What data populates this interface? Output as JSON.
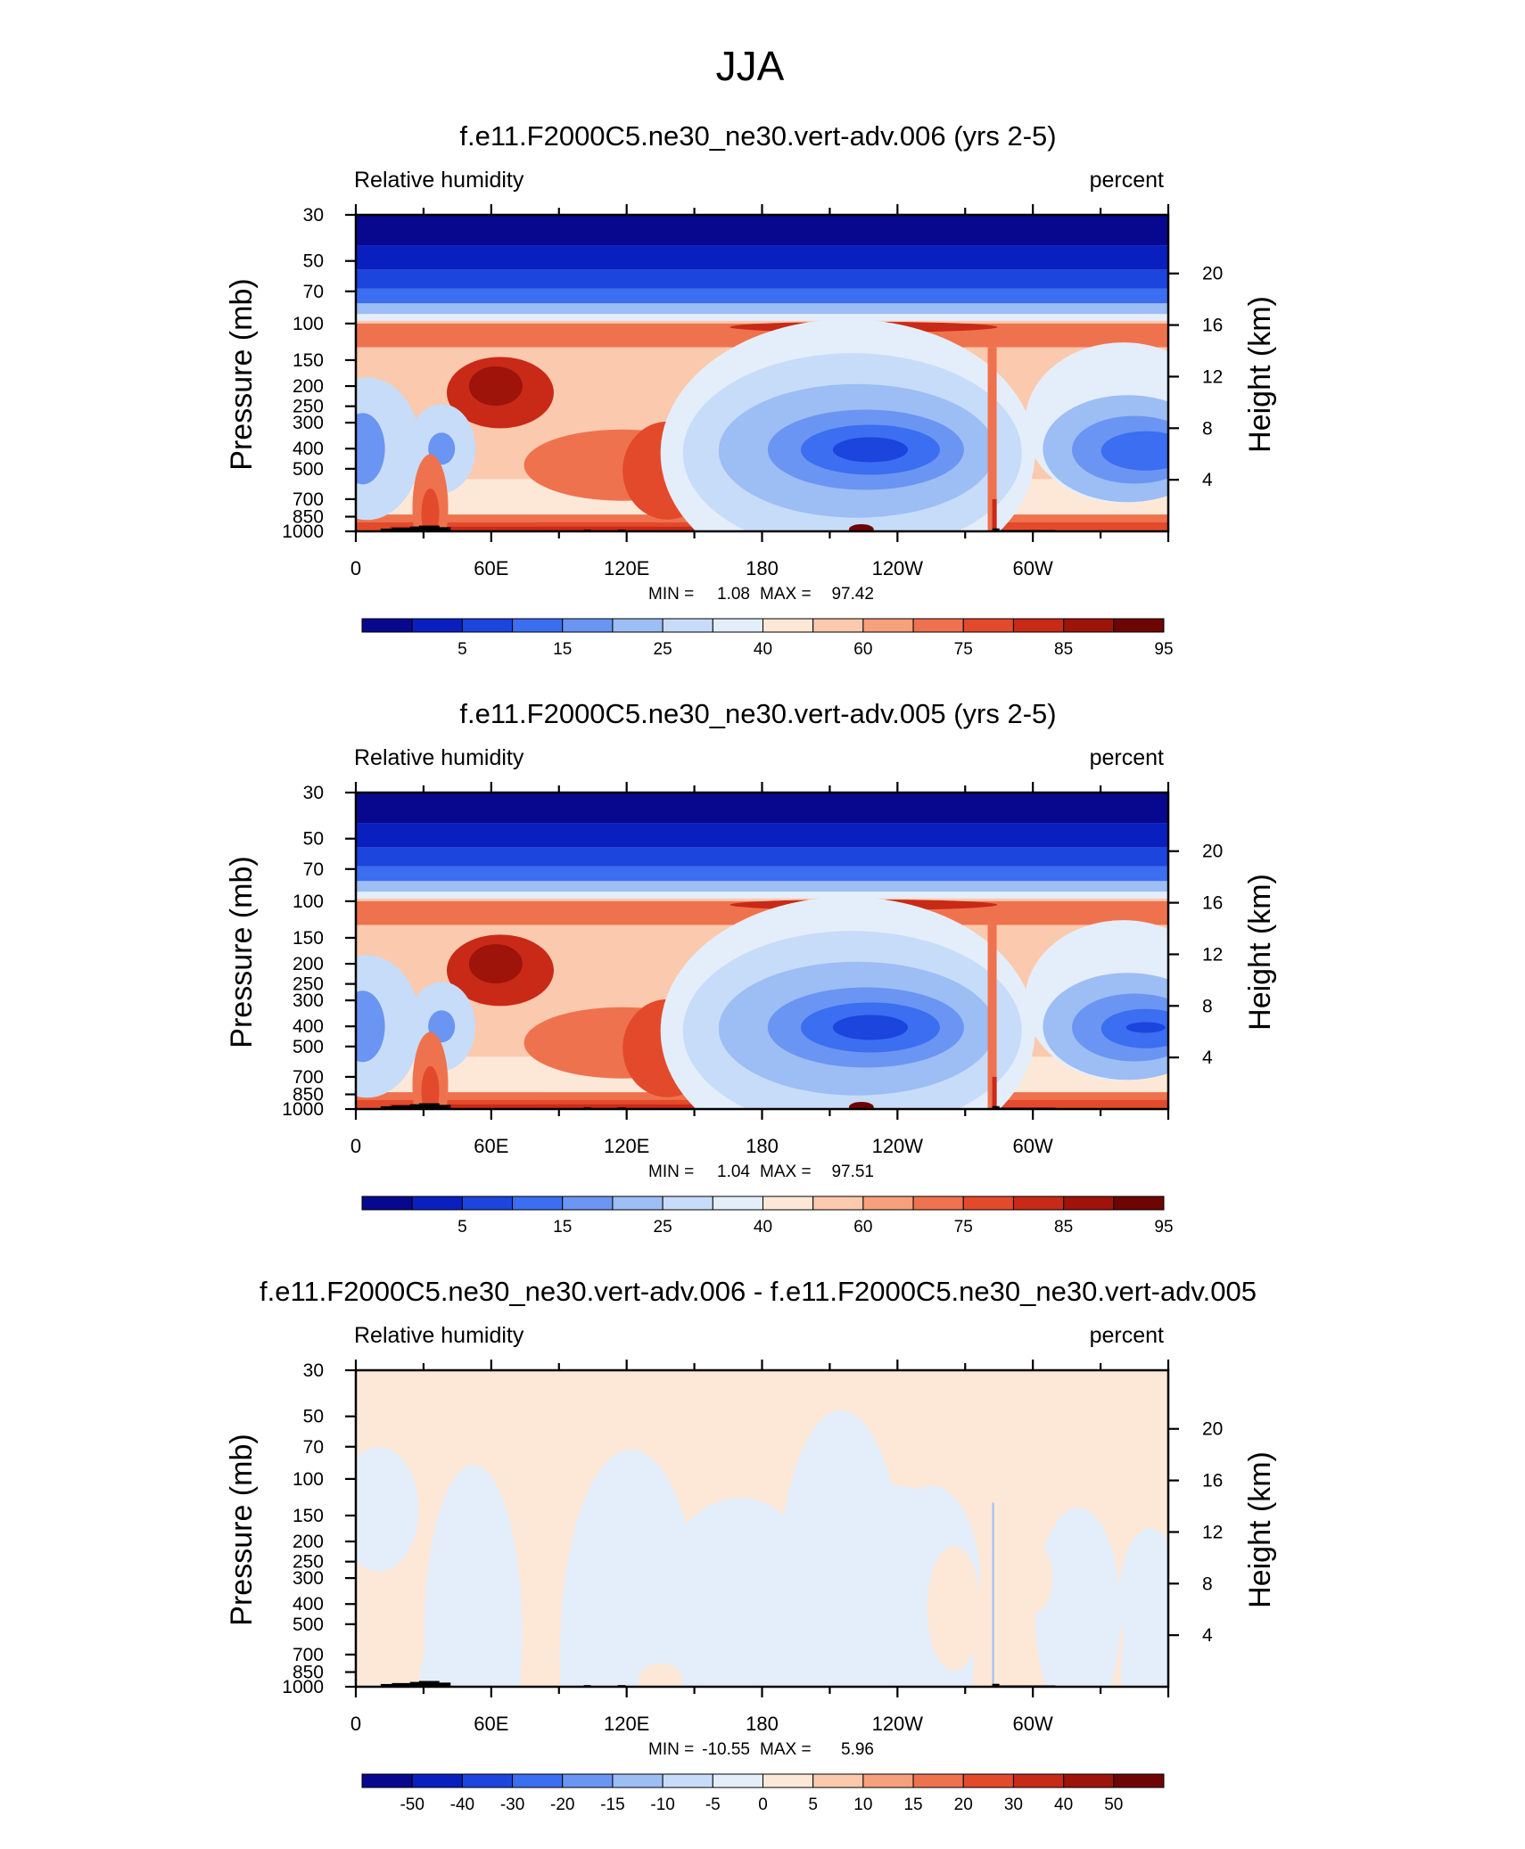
{
  "page_title": "JJA",
  "chart_data": [
    {
      "type": "contour",
      "title": "f.e11.F2000C5.ne30_ne30.vert-adv.006 (yrs 2-5)",
      "left_label": "Relative humidity",
      "right_label": "percent",
      "ylabel": "Pressure (mb)",
      "ylabel_right": "Height (km)",
      "pressure_ticks": [
        "30",
        "50",
        "70",
        "100",
        "150",
        "200",
        "250",
        "300",
        "400",
        "500",
        "700",
        "850",
        "1000"
      ],
      "height_ticks": [
        "20",
        "16",
        "12",
        "8",
        "4"
      ],
      "lon_ticks": [
        "0",
        "60E",
        "120E",
        "180",
        "120W",
        "60W"
      ],
      "stats": {
        "min_label": "MIN =",
        "min": "1.08",
        "max_label": "MAX =",
        "max": "97.42"
      },
      "colorbar_labels": [
        "5",
        "15",
        "25",
        "40",
        "60",
        "75",
        "85",
        "95"
      ],
      "kind": "absolute"
    },
    {
      "type": "contour",
      "title": "f.e11.F2000C5.ne30_ne30.vert-adv.005 (yrs 2-5)",
      "left_label": "Relative humidity",
      "right_label": "percent",
      "ylabel": "Pressure (mb)",
      "ylabel_right": "Height (km)",
      "pressure_ticks": [
        "30",
        "50",
        "70",
        "100",
        "150",
        "200",
        "250",
        "300",
        "400",
        "500",
        "700",
        "850",
        "1000"
      ],
      "height_ticks": [
        "20",
        "16",
        "12",
        "8",
        "4"
      ],
      "lon_ticks": [
        "0",
        "60E",
        "120E",
        "180",
        "120W",
        "60W"
      ],
      "stats": {
        "min_label": "MIN =",
        "min": "1.04",
        "max_label": "MAX =",
        "max": "97.51"
      },
      "colorbar_labels": [
        "5",
        "15",
        "25",
        "40",
        "60",
        "75",
        "85",
        "95"
      ],
      "kind": "absolute"
    },
    {
      "type": "contour",
      "title": "f.e11.F2000C5.ne30_ne30.vert-adv.006 - f.e11.F2000C5.ne30_ne30.vert-adv.005",
      "left_label": "Relative humidity",
      "right_label": "percent",
      "ylabel": "Pressure (mb)",
      "ylabel_right": "Height (km)",
      "pressure_ticks": [
        "30",
        "50",
        "70",
        "100",
        "150",
        "200",
        "250",
        "300",
        "400",
        "500",
        "700",
        "850",
        "1000"
      ],
      "height_ticks": [
        "20",
        "16",
        "12",
        "8",
        "4"
      ],
      "lon_ticks": [
        "0",
        "60E",
        "120E",
        "180",
        "120W",
        "60W"
      ],
      "stats": {
        "min_label": "MIN =",
        "min": "-10.55",
        "max_label": "MAX =",
        "max": "5.96"
      },
      "colorbar_labels": [
        "-50",
        "-40",
        "-30",
        "-20",
        "-15",
        "-10",
        "-5",
        "0",
        "5",
        "10",
        "15",
        "20",
        "30",
        "40",
        "50"
      ],
      "kind": "difference"
    }
  ],
  "colors": {
    "palette": [
      "#08088f",
      "#0a1fc0",
      "#1b45dd",
      "#3b6ef0",
      "#6a95f2",
      "#9dbdf5",
      "#c7dcf8",
      "#e4eefb",
      "#fde8d8",
      "#fbc9ad",
      "#f6a07c",
      "#ef724f",
      "#e34a2b",
      "#c82a17",
      "#9e130a",
      "#6e0505"
    ],
    "terrain": "#000000"
  }
}
